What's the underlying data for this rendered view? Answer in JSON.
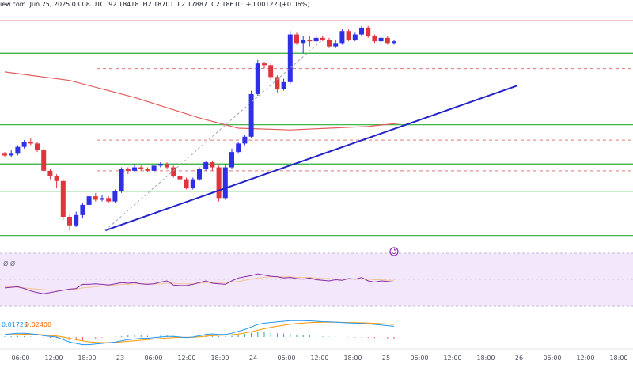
{
  "header": {
    "source": "iew.com",
    "date": "Jun 25, 2025 03:08 UTC",
    "open": "92.18418",
    "high": "H2.18701",
    "low": "L2.17887",
    "close": "C2.18610",
    "change": "+0.00122 (+0.06%)"
  },
  "rsi_panel": {
    "label": "Ø Ø"
  },
  "macd_panel": {
    "value1": "0.01725",
    "value2": "0.02400"
  },
  "colors": {
    "up": "#2f2fe8",
    "down": "#e0353d",
    "ma": "#e45c5c",
    "support": "#27ae38",
    "resistance": "#d62e2e",
    "trend": "#2424c8",
    "rsi_bg": "#f3e8fb",
    "rsi_line": "#8a2aa8",
    "rsi_ma": "#f2c494",
    "macd_line": "#2196f3",
    "signal_line": "#ff9800"
  },
  "chart_data": {
    "type": "candlestick",
    "x_tick_labels": [
      "06:00",
      "12:00",
      "18:00",
      "23",
      "06:00",
      "12:00",
      "18:00",
      "24",
      "06:00",
      "12:00",
      "18:00",
      "25",
      "06:00",
      "12:00",
      "18:00",
      "26",
      "06:00",
      "12:00",
      "18:00"
    ],
    "candles": [
      [
        0.7,
        0.69,
        0.71,
        0.68
      ],
      [
        0.69,
        0.7,
        0.72,
        0.68
      ],
      [
        0.7,
        0.74,
        0.75,
        0.69
      ],
      [
        0.74,
        0.77,
        0.78,
        0.73
      ],
      [
        0.77,
        0.76,
        0.79,
        0.75
      ],
      [
        0.76,
        0.72,
        0.77,
        0.71
      ],
      [
        0.72,
        0.6,
        0.73,
        0.59
      ],
      [
        0.6,
        0.57,
        0.61,
        0.55
      ],
      [
        0.57,
        0.54,
        0.58,
        0.5
      ],
      [
        0.54,
        0.33,
        0.55,
        0.31
      ],
      [
        0.33,
        0.28,
        0.34,
        0.25
      ],
      [
        0.28,
        0.34,
        0.36,
        0.27
      ],
      [
        0.34,
        0.4,
        0.41,
        0.32
      ],
      [
        0.4,
        0.45,
        0.46,
        0.39
      ],
      [
        0.45,
        0.43,
        0.47,
        0.42
      ],
      [
        0.43,
        0.44,
        0.46,
        0.42
      ],
      [
        0.44,
        0.42,
        0.45,
        0.41
      ],
      [
        0.42,
        0.48,
        0.49,
        0.41
      ],
      [
        0.48,
        0.61,
        0.62,
        0.47
      ],
      [
        0.61,
        0.6,
        0.62,
        0.58
      ],
      [
        0.6,
        0.62,
        0.64,
        0.59
      ],
      [
        0.62,
        0.61,
        0.63,
        0.6
      ],
      [
        0.61,
        0.6,
        0.62,
        0.59
      ],
      [
        0.6,
        0.63,
        0.64,
        0.59
      ],
      [
        0.63,
        0.64,
        0.65,
        0.62
      ],
      [
        0.64,
        0.62,
        0.65,
        0.61
      ],
      [
        0.62,
        0.57,
        0.63,
        0.56
      ],
      [
        0.57,
        0.55,
        0.58,
        0.54
      ],
      [
        0.55,
        0.5,
        0.56,
        0.49
      ],
      [
        0.5,
        0.55,
        0.56,
        0.49
      ],
      [
        0.55,
        0.61,
        0.62,
        0.54
      ],
      [
        0.61,
        0.65,
        0.66,
        0.6
      ],
      [
        0.65,
        0.62,
        0.66,
        0.6
      ],
      [
        0.62,
        0.44,
        0.63,
        0.42
      ],
      [
        0.44,
        0.62,
        0.64,
        0.43
      ],
      [
        0.62,
        0.71,
        0.73,
        0.61
      ],
      [
        0.71,
        0.76,
        0.77,
        0.7
      ],
      [
        0.76,
        0.8,
        0.81,
        0.75
      ],
      [
        0.8,
        1.05,
        1.07,
        0.79
      ],
      [
        1.05,
        1.23,
        1.25,
        1.04
      ],
      [
        1.23,
        1.22,
        1.24,
        1.2
      ],
      [
        1.22,
        1.15,
        1.23,
        1.13
      ],
      [
        1.15,
        1.08,
        1.16,
        1.06
      ],
      [
        1.08,
        1.12,
        1.14,
        1.07
      ],
      [
        1.12,
        1.4,
        1.42,
        1.11
      ],
      [
        1.4,
        1.35,
        1.41,
        1.34
      ],
      [
        1.35,
        1.37,
        1.39,
        1.29
      ],
      [
        1.37,
        1.36,
        1.39,
        1.33
      ],
      [
        1.36,
        1.38,
        1.4,
        1.35
      ],
      [
        1.38,
        1.37,
        1.39,
        1.36
      ],
      [
        1.37,
        1.33,
        1.38,
        1.32
      ],
      [
        1.33,
        1.35,
        1.37,
        1.32
      ],
      [
        1.35,
        1.42,
        1.43,
        1.34
      ],
      [
        1.42,
        1.37,
        1.43,
        1.36
      ],
      [
        1.37,
        1.4,
        1.41,
        1.36
      ],
      [
        1.4,
        1.44,
        1.45,
        1.39
      ],
      [
        1.44,
        1.39,
        1.45,
        1.38
      ],
      [
        1.39,
        1.36,
        1.4,
        1.35
      ],
      [
        1.36,
        1.38,
        1.39,
        1.34
      ],
      [
        1.38,
        1.35,
        1.39,
        1.34
      ],
      [
        1.35,
        1.36,
        1.37,
        1.34
      ]
    ],
    "candle_format": [
      "open",
      "close",
      "high",
      "low"
    ],
    "ylim": [
      0.2,
      1.5
    ],
    "moving_average": {
      "x": [
        0,
        10,
        20,
        30,
        36,
        44,
        50,
        56,
        61
      ],
      "y": [
        1.18,
        1.13,
        1.03,
        0.91,
        0.85,
        0.84,
        0.85,
        0.86,
        0.88
      ]
    },
    "horizontal_levels": [
      {
        "type": "resistance",
        "value": 1.48
      },
      {
        "type": "support",
        "value": 1.29
      },
      {
        "type": "support",
        "value": 0.87
      },
      {
        "type": "support",
        "value": 0.64
      },
      {
        "type": "support",
        "value": 0.48
      },
      {
        "type": "support",
        "value": 0.22
      }
    ],
    "dashed_levels": [
      1.2,
      0.78,
      0.6
    ],
    "trend_line": {
      "x": [
        15.5,
        79
      ],
      "y": [
        0.25,
        1.1
      ]
    },
    "rsi": [
      38,
      39,
      40,
      37,
      33,
      30,
      28,
      30,
      32,
      34,
      36,
      37,
      44,
      44,
      45,
      44,
      43,
      45,
      47,
      46,
      47,
      45,
      44,
      45,
      48,
      50,
      43,
      42,
      42,
      44,
      47,
      50,
      46,
      45,
      44,
      50,
      55,
      57,
      59,
      62,
      60,
      58,
      57,
      55,
      56,
      54,
      53,
      55,
      52,
      51,
      50,
      52,
      51,
      54,
      53,
      56,
      50,
      48,
      50,
      49,
      48
    ],
    "rsi_ma": [
      40,
      40,
      39,
      38,
      37,
      36,
      35,
      34,
      34,
      34,
      35,
      36,
      38,
      39,
      40,
      41,
      42,
      43,
      44,
      44,
      45,
      45,
      45,
      45,
      45,
      46,
      46,
      45,
      45,
      45,
      46,
      47,
      47,
      47,
      47,
      48,
      49,
      51,
      53,
      55,
      56,
      57,
      57,
      57,
      57,
      56,
      56,
      56,
      55,
      54,
      54,
      53,
      53,
      53,
      53,
      53,
      53,
      52,
      52,
      51,
      51
    ],
    "macd": [
      0.2,
      0.25,
      0.3,
      0.3,
      0.25,
      0.2,
      0.1,
      0.05,
      0.0,
      -0.2,
      -0.4,
      -0.5,
      -0.6,
      -0.6,
      -0.55,
      -0.5,
      -0.45,
      -0.4,
      -0.3,
      -0.2,
      -0.15,
      -0.1,
      -0.1,
      -0.05,
      0.0,
      0.05,
      0.05,
      0.0,
      -0.05,
      0.0,
      0.1,
      0.2,
      0.25,
      0.2,
      0.2,
      0.3,
      0.45,
      0.6,
      0.8,
      1.0,
      1.1,
      1.15,
      1.2,
      1.25,
      1.3,
      1.3,
      1.3,
      1.28,
      1.25,
      1.22,
      1.2,
      1.18,
      1.15,
      1.12,
      1.1,
      1.08,
      1.05,
      1.0,
      0.95,
      0.9,
      0.85
    ],
    "macd_signal": [
      0.15,
      0.18,
      0.2,
      0.22,
      0.22,
      0.2,
      0.17,
      0.12,
      0.08,
      0.0,
      -0.1,
      -0.2,
      -0.3,
      -0.38,
      -0.42,
      -0.44,
      -0.44,
      -0.42,
      -0.38,
      -0.34,
      -0.3,
      -0.25,
      -0.2,
      -0.16,
      -0.12,
      -0.08,
      -0.05,
      -0.03,
      -0.02,
      -0.01,
      0.02,
      0.06,
      0.1,
      0.13,
      0.15,
      0.18,
      0.24,
      0.32,
      0.42,
      0.54,
      0.66,
      0.77,
      0.86,
      0.94,
      1.01,
      1.07,
      1.11,
      1.14,
      1.16,
      1.17,
      1.17,
      1.17,
      1.16,
      1.15,
      1.14,
      1.13,
      1.11,
      1.09,
      1.06,
      1.03,
      1.0
    ]
  }
}
